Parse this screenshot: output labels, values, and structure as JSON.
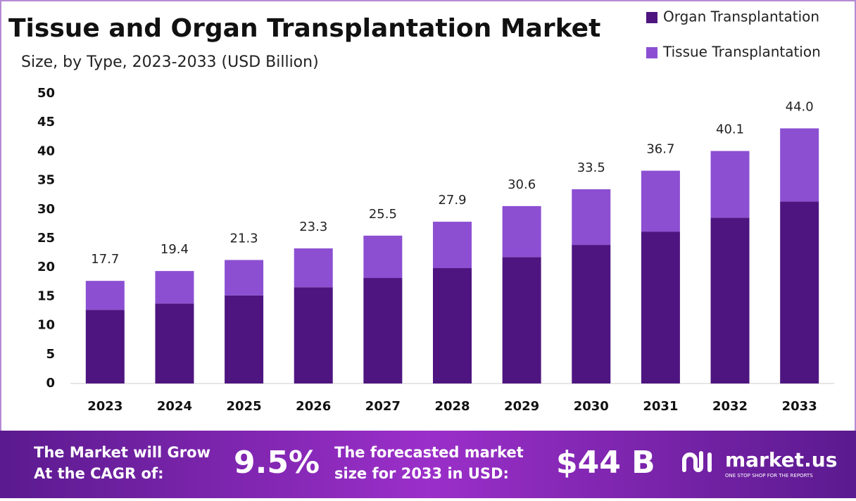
{
  "chart_data": {
    "type": "stacked_bar",
    "title": "Tissue and Organ Transplantation Market",
    "subtitle": "Size, by Type, 2023-2033 (USD Billion)",
    "categories": [
      "2023",
      "2024",
      "2025",
      "2026",
      "2027",
      "2028",
      "2029",
      "2030",
      "2031",
      "2032",
      "2033"
    ],
    "series": [
      {
        "name": "Organ Transplantation",
        "color": "#4e1580",
        "values": [
          12.7,
          13.8,
          15.2,
          16.6,
          18.2,
          19.9,
          21.8,
          23.9,
          26.2,
          28.6,
          31.4
        ]
      },
      {
        "name": "Tissue Transplantation",
        "color": "#8c4fd2",
        "values": [
          5.0,
          5.6,
          6.1,
          6.7,
          7.3,
          8.0,
          8.8,
          9.6,
          10.5,
          11.5,
          12.6
        ]
      }
    ],
    "totals": [
      17.7,
      19.4,
      21.3,
      23.3,
      25.5,
      27.9,
      30.6,
      33.5,
      36.7,
      40.1,
      44.0
    ],
    "value_labels": [
      "17.7",
      "19.4",
      "21.3",
      "23.3",
      "25.5",
      "27.9",
      "30.6",
      "33.5",
      "36.7",
      "40.1",
      "44.0"
    ],
    "ylim": [
      0,
      50
    ],
    "yticks": [
      0,
      5,
      10,
      15,
      20,
      25,
      30,
      35,
      40,
      45,
      50
    ],
    "grid": false,
    "legend": "top-right"
  },
  "footer": {
    "cagr_label": [
      "The Market will Grow",
      "At the CAGR of:"
    ],
    "cagr": "9.5%",
    "forecast_label": [
      "The forecasted market",
      "size for 2033 in USD:"
    ],
    "forecast": "$44 B",
    "brand": "market.us",
    "tagline": "ONE STOP SHOP FOR THE REPORTS"
  }
}
